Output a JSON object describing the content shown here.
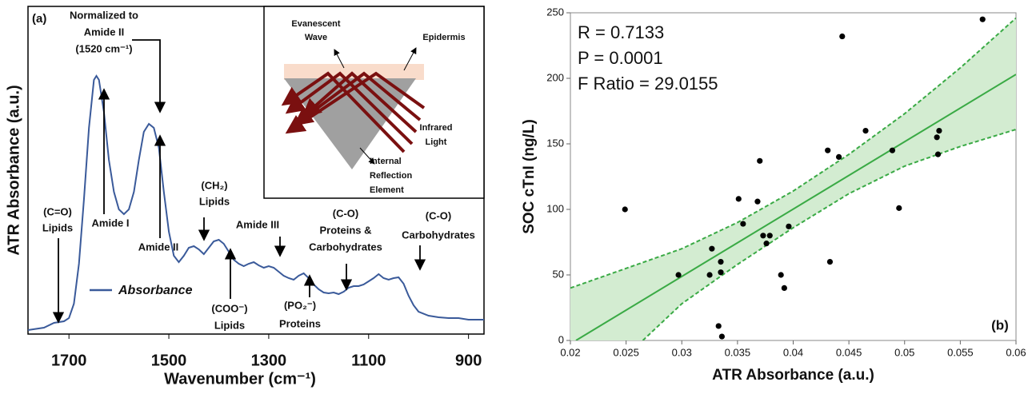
{
  "chart_data": [
    {
      "type": "line",
      "panel": "(a)",
      "x_label": "Wavenumber (cm⁻¹)",
      "y_label": "ATR Absorbance (a.u.)",
      "xlim": [
        1782,
        869
      ],
      "xticks": [
        1700,
        1500,
        1300,
        1100,
        900
      ],
      "ylim": [
        0,
        410
      ],
      "series": [
        {
          "name": "Absorbance",
          "color": "#3a5a9a",
          "x": [
            1782,
            1750,
            1730,
            1710,
            1700,
            1690,
            1680,
            1670,
            1660,
            1650,
            1645,
            1640,
            1630,
            1620,
            1610,
            1600,
            1590,
            1580,
            1570,
            1560,
            1550,
            1540,
            1530,
            1520,
            1510,
            1500,
            1490,
            1480,
            1470,
            1460,
            1450,
            1440,
            1430,
            1420,
            1410,
            1400,
            1390,
            1380,
            1370,
            1360,
            1350,
            1340,
            1330,
            1320,
            1310,
            1300,
            1290,
            1280,
            1270,
            1260,
            1250,
            1240,
            1230,
            1220,
            1210,
            1200,
            1190,
            1180,
            1170,
            1160,
            1150,
            1140,
            1130,
            1120,
            1110,
            1100,
            1090,
            1080,
            1070,
            1060,
            1050,
            1040,
            1030,
            1020,
            1010,
            1000,
            980,
            960,
            940,
            920,
            900,
            880,
            869
          ],
          "values": [
            5,
            8,
            14,
            16,
            20,
            38,
            88,
            168,
            258,
            318,
            323,
            318,
            278,
            218,
            178,
            156,
            150,
            156,
            178,
            218,
            253,
            263,
            258,
            233,
            178,
            128,
            98,
            90,
            98,
            108,
            110,
            106,
            100,
            108,
            116,
            118,
            113,
            103,
            93,
            88,
            85,
            88,
            90,
            86,
            83,
            85,
            83,
            78,
            73,
            70,
            68,
            73,
            76,
            70,
            62,
            56,
            52,
            51,
            52,
            50,
            53,
            58,
            60,
            60,
            62,
            66,
            70,
            75,
            70,
            68,
            70,
            71,
            63,
            48,
            36,
            28,
            23,
            21,
            20,
            20,
            18,
            18,
            18
          ]
        }
      ],
      "annotations": [
        [
          "Normalized to",
          "Amide II",
          "(1520 cm⁻¹)"
        ],
        [
          "Amide I"
        ],
        [
          "Amide II"
        ],
        [
          "(CH₂)",
          "Lipids"
        ],
        [
          "Amide III"
        ],
        [
          "(C-O)",
          "Proteins &",
          "Carbohydrates"
        ],
        [
          "(C-O)",
          "Carbohydrates"
        ],
        [
          "(C=O)",
          "Lipids"
        ],
        [
          "(COO⁻)",
          "Lipids"
        ],
        [
          "(PO₂⁻)",
          "Proteins"
        ]
      ],
      "inset_labels": [
        [
          "Evanescent",
          "Wave"
        ],
        [
          "Epidermis"
        ],
        [
          "Infrared",
          "Light"
        ],
        [
          "Internal",
          "Reflection",
          "Element"
        ]
      ]
    },
    {
      "type": "scatter",
      "panel": "(b)",
      "x_label": "ATR Absorbance (a.u.)",
      "y_label": "SOC cTnI (ng/L)",
      "stats": [
        "R = 0.7133",
        "P = 0.0001",
        "F Ratio = 29.0155"
      ],
      "xlim": [
        0.02,
        0.06
      ],
      "xticks": [
        0.02,
        0.025,
        0.03,
        0.035,
        0.04,
        0.045,
        0.05,
        0.055,
        0.06
      ],
      "ylim": [
        0,
        250
      ],
      "yticks": [
        0,
        50,
        100,
        150,
        200,
        250
      ],
      "color": "#000000",
      "x": [
        0.0249,
        0.0297,
        0.0325,
        0.0327,
        0.0333,
        0.0335,
        0.0335,
        0.0336,
        0.0351,
        0.0355,
        0.0368,
        0.037,
        0.0373,
        0.0376,
        0.0379,
        0.0389,
        0.0392,
        0.0396,
        0.0431,
        0.0433,
        0.0441,
        0.0444,
        0.0465,
        0.0489,
        0.0495,
        0.0529,
        0.053,
        0.0531,
        0.057
      ],
      "values": [
        100,
        50,
        50,
        70,
        11,
        60,
        52,
        3,
        108,
        89,
        106,
        137,
        80,
        74,
        80,
        50,
        40,
        87,
        145,
        60,
        140,
        232,
        160,
        145,
        101,
        155,
        142,
        160,
        245
      ],
      "fit": {
        "color": "#3aaa45",
        "x": [
          0.0205,
          0.06
        ],
        "values": [
          0,
          203
        ]
      },
      "band_upper": {
        "x": [
          0.02,
          0.025,
          0.03,
          0.035,
          0.04,
          0.045,
          0.05,
          0.055,
          0.06
        ],
        "values": [
          40,
          55,
          70,
          90,
          114,
          142,
          173,
          208,
          246
        ]
      },
      "band_lower": {
        "x": [
          0.0265,
          0.03,
          0.035,
          0.04,
          0.045,
          0.05,
          0.055,
          0.06
        ],
        "values": [
          0,
          28,
          58,
          86,
          112,
          133,
          148,
          161
        ]
      },
      "band_color": "#d3ecd1"
    }
  ]
}
